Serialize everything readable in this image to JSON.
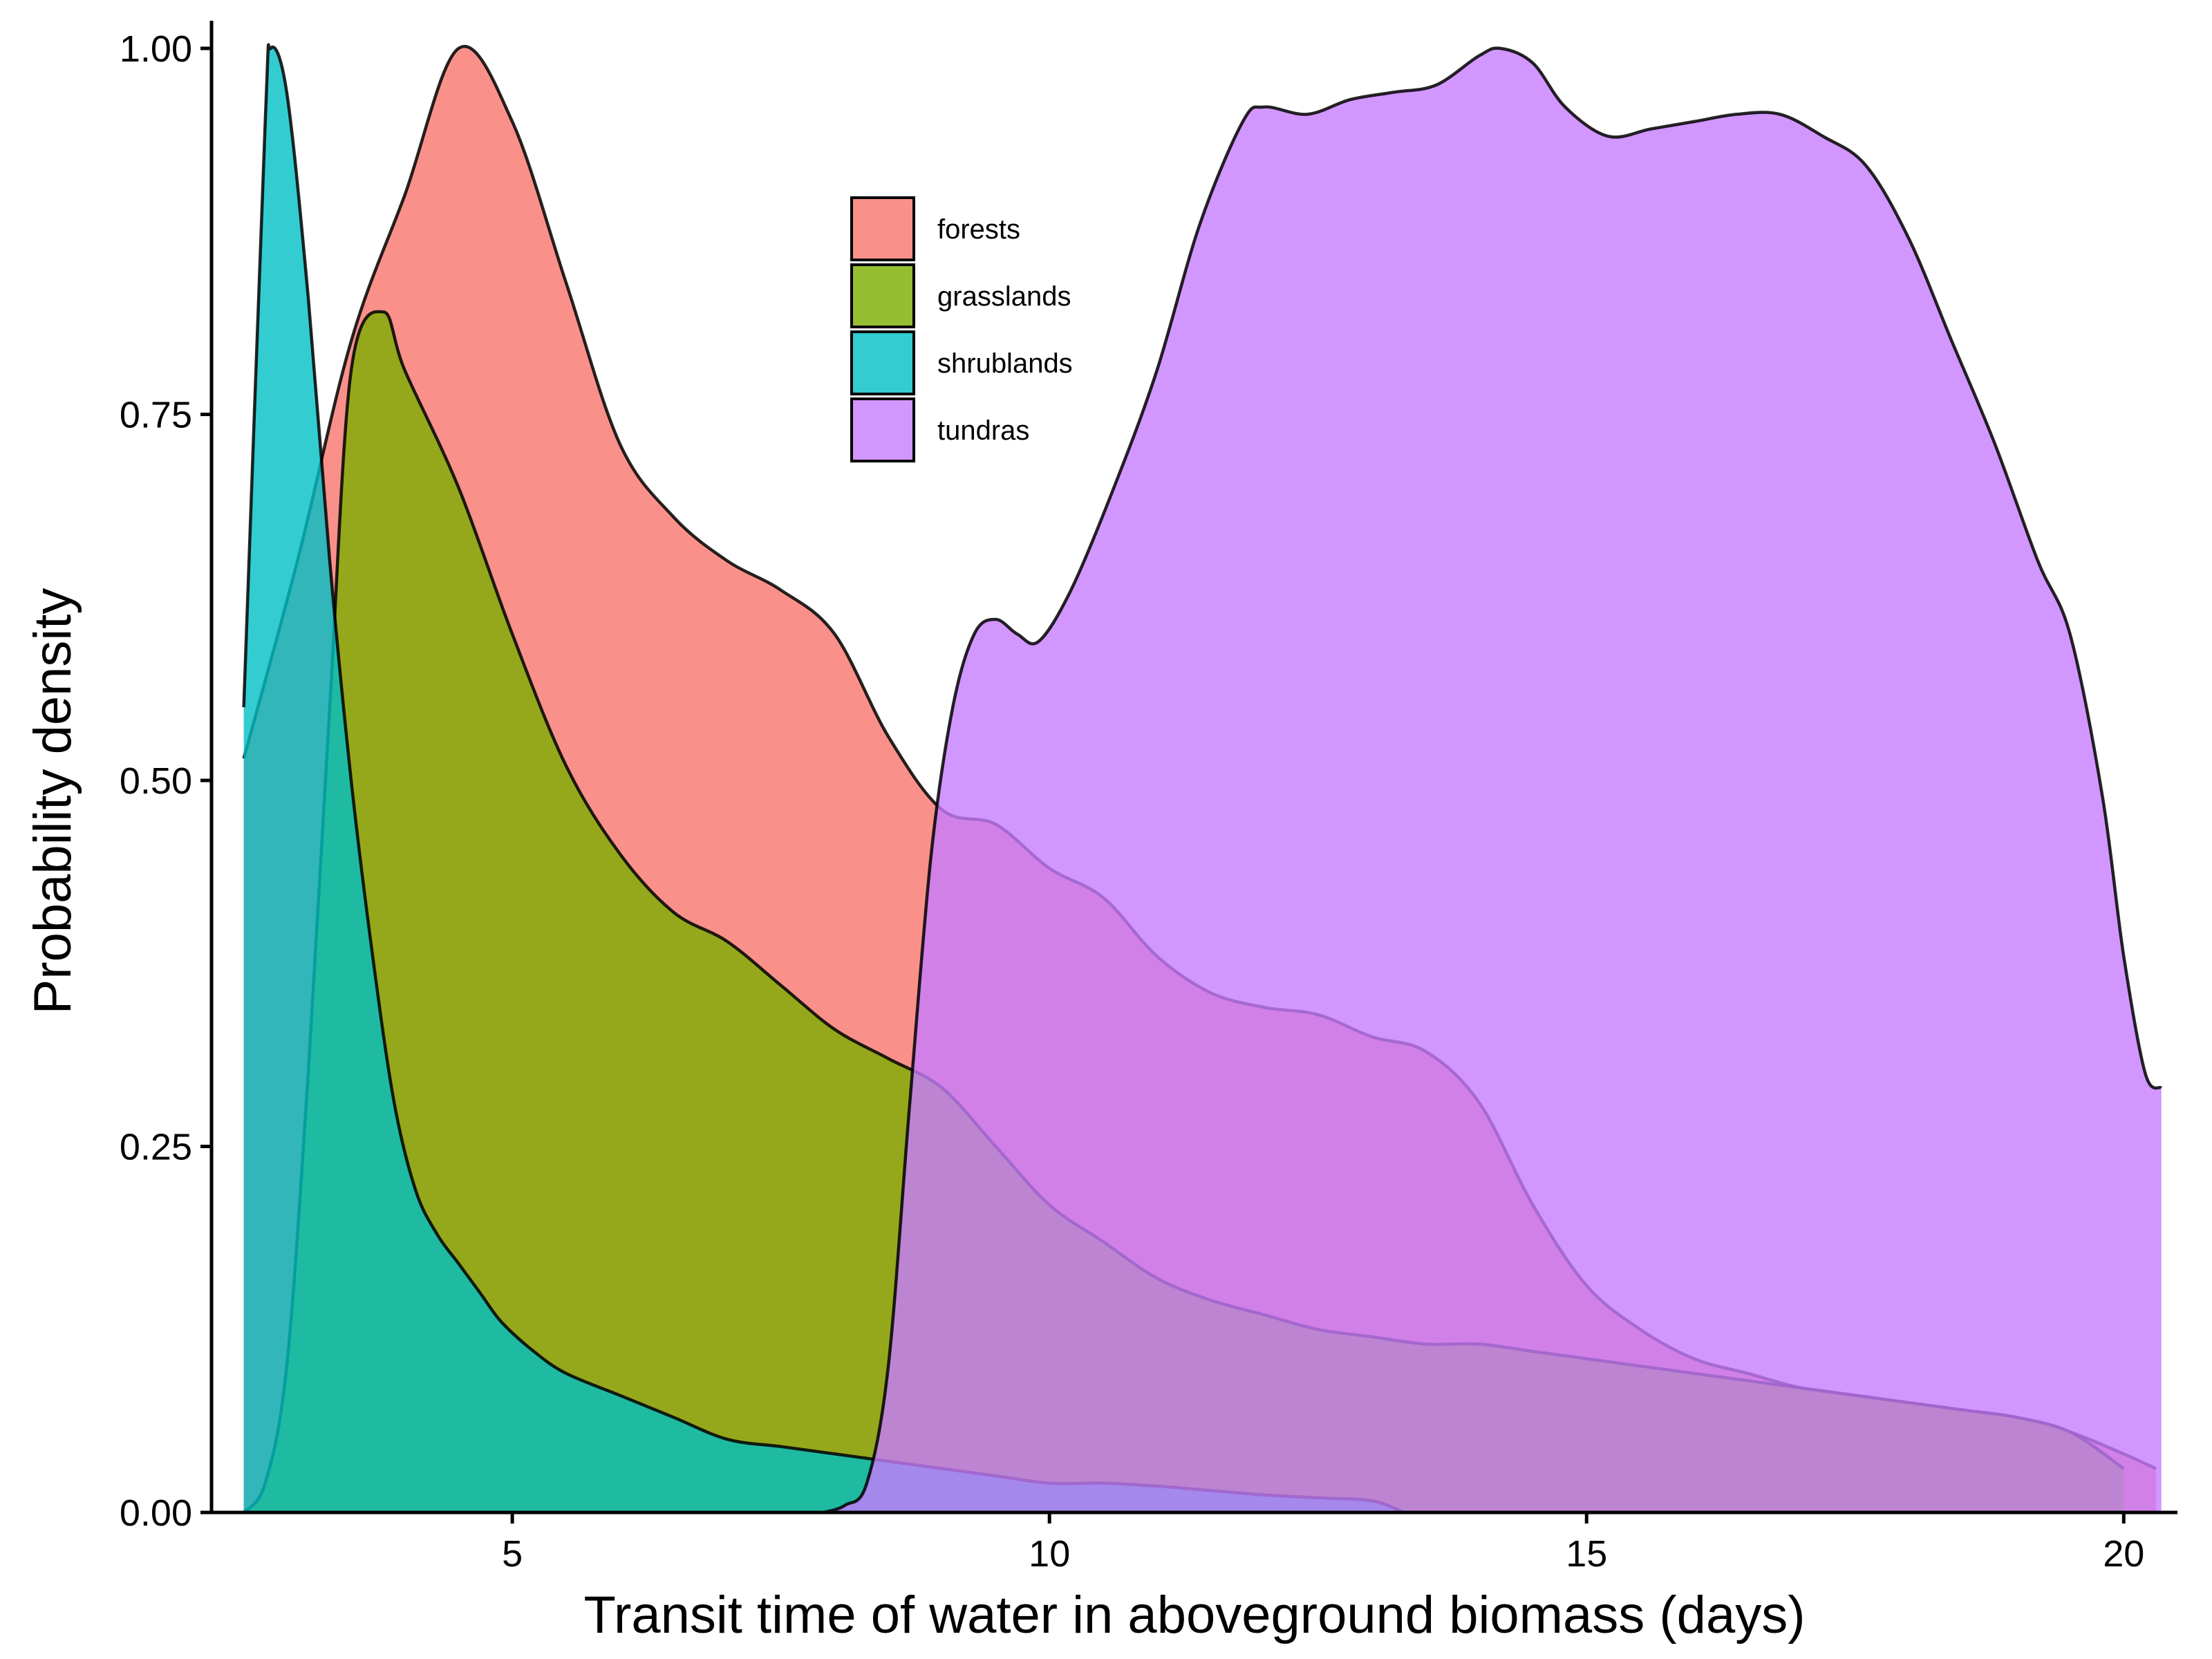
{
  "chart_data": {
    "type": "area",
    "xlabel": "Transit time of water in aboveground biomass (days)",
    "ylabel": "Probability density",
    "xlim": [
      2.2,
      20.5
    ],
    "ylim": [
      0,
      1
    ],
    "xticks": [
      5,
      10,
      15,
      20
    ],
    "yticks": [
      0,
      0.25,
      0.5,
      0.75,
      1.0
    ],
    "ytick_labels": [
      "0.00",
      "0.25",
      "0.50",
      "0.75",
      "1.00"
    ],
    "grid": false,
    "legend_position": "top-center",
    "series": [
      {
        "name": "forests",
        "color": "#F8766D",
        "points": [
          [
            2.5,
            0.515
          ],
          [
            3.0,
            0.65
          ],
          [
            3.5,
            0.8
          ],
          [
            4.0,
            0.9
          ],
          [
            4.5,
            1.0
          ],
          [
            5.0,
            0.95
          ],
          [
            5.5,
            0.84
          ],
          [
            6.0,
            0.73
          ],
          [
            6.5,
            0.68
          ],
          [
            7.0,
            0.65
          ],
          [
            7.5,
            0.63
          ],
          [
            8.0,
            0.6
          ],
          [
            8.5,
            0.53
          ],
          [
            9.0,
            0.48
          ],
          [
            9.5,
            0.47
          ],
          [
            10.0,
            0.44
          ],
          [
            10.5,
            0.42
          ],
          [
            11.0,
            0.38
          ],
          [
            11.5,
            0.355
          ],
          [
            12.0,
            0.345
          ],
          [
            12.5,
            0.34
          ],
          [
            13.0,
            0.325
          ],
          [
            13.5,
            0.315
          ],
          [
            14.0,
            0.28
          ],
          [
            14.5,
            0.21
          ],
          [
            15.0,
            0.155
          ],
          [
            15.5,
            0.125
          ],
          [
            16.0,
            0.105
          ],
          [
            16.5,
            0.095
          ],
          [
            17.0,
            0.085
          ],
          [
            17.5,
            0.08
          ],
          [
            18.0,
            0.075
          ],
          [
            18.5,
            0.07
          ],
          [
            19.0,
            0.065
          ],
          [
            19.5,
            0.055
          ],
          [
            20.0,
            0.04
          ],
          [
            20.3,
            0.03
          ]
        ]
      },
      {
        "name": "grasslands",
        "color": "#7CAE00",
        "points": [
          [
            2.5,
            0.0
          ],
          [
            2.7,
            0.02
          ],
          [
            2.9,
            0.1
          ],
          [
            3.1,
            0.3
          ],
          [
            3.3,
            0.55
          ],
          [
            3.5,
            0.78
          ],
          [
            3.8,
            0.82
          ],
          [
            4.0,
            0.78
          ],
          [
            4.5,
            0.7
          ],
          [
            5.0,
            0.6
          ],
          [
            5.5,
            0.51
          ],
          [
            6.0,
            0.45
          ],
          [
            6.5,
            0.41
          ],
          [
            7.0,
            0.39
          ],
          [
            7.5,
            0.36
          ],
          [
            8.0,
            0.33
          ],
          [
            8.5,
            0.31
          ],
          [
            9.0,
            0.29
          ],
          [
            9.5,
            0.25
          ],
          [
            10.0,
            0.21
          ],
          [
            10.5,
            0.185
          ],
          [
            11.0,
            0.16
          ],
          [
            11.5,
            0.145
          ],
          [
            12.0,
            0.135
          ],
          [
            12.5,
            0.125
          ],
          [
            13.0,
            0.12
          ],
          [
            13.5,
            0.115
          ],
          [
            14.0,
            0.115
          ],
          [
            14.5,
            0.11
          ],
          [
            15.0,
            0.105
          ],
          [
            15.5,
            0.1
          ],
          [
            16.0,
            0.095
          ],
          [
            16.5,
            0.09
          ],
          [
            17.0,
            0.085
          ],
          [
            17.5,
            0.08
          ],
          [
            18.0,
            0.075
          ],
          [
            18.5,
            0.07
          ],
          [
            19.0,
            0.065
          ],
          [
            19.5,
            0.055
          ],
          [
            20.0,
            0.03
          ]
        ]
      },
      {
        "name": "shrublands",
        "color": "#00BFC4",
        "points": [
          [
            2.5,
            0.55
          ],
          [
            2.7,
            0.95
          ],
          [
            2.75,
            1.0
          ],
          [
            2.9,
            0.97
          ],
          [
            3.1,
            0.83
          ],
          [
            3.3,
            0.65
          ],
          [
            3.5,
            0.5
          ],
          [
            3.7,
            0.38
          ],
          [
            3.9,
            0.28
          ],
          [
            4.1,
            0.22
          ],
          [
            4.3,
            0.19
          ],
          [
            4.5,
            0.17
          ],
          [
            4.7,
            0.15
          ],
          [
            4.9,
            0.13
          ],
          [
            5.2,
            0.11
          ],
          [
            5.5,
            0.095
          ],
          [
            6.0,
            0.08
          ],
          [
            6.5,
            0.065
          ],
          [
            7.0,
            0.05
          ],
          [
            7.5,
            0.045
          ],
          [
            8.0,
            0.04
          ],
          [
            8.5,
            0.035
          ],
          [
            9.0,
            0.03
          ],
          [
            9.5,
            0.025
          ],
          [
            10.0,
            0.02
          ],
          [
            10.5,
            0.02
          ],
          [
            11.0,
            0.018
          ],
          [
            11.5,
            0.015
          ],
          [
            12.0,
            0.012
          ],
          [
            12.5,
            0.01
          ],
          [
            13.0,
            0.008
          ],
          [
            13.3,
            0.0
          ]
        ]
      },
      {
        "name": "tundras",
        "color": "#C77CFF",
        "points": [
          [
            7.9,
            0.0
          ],
          [
            8.1,
            0.005
          ],
          [
            8.3,
            0.02
          ],
          [
            8.5,
            0.1
          ],
          [
            8.7,
            0.28
          ],
          [
            8.9,
            0.45
          ],
          [
            9.1,
            0.55
          ],
          [
            9.3,
            0.6
          ],
          [
            9.5,
            0.61
          ],
          [
            9.7,
            0.6
          ],
          [
            9.9,
            0.595
          ],
          [
            10.2,
            0.63
          ],
          [
            10.6,
            0.7
          ],
          [
            11.0,
            0.78
          ],
          [
            11.4,
            0.88
          ],
          [
            11.8,
            0.95
          ],
          [
            12.0,
            0.96
          ],
          [
            12.4,
            0.955
          ],
          [
            12.8,
            0.965
          ],
          [
            13.2,
            0.97
          ],
          [
            13.6,
            0.975
          ],
          [
            14.0,
            0.995
          ],
          [
            14.2,
            1.0
          ],
          [
            14.5,
            0.99
          ],
          [
            14.8,
            0.96
          ],
          [
            15.2,
            0.94
          ],
          [
            15.6,
            0.945
          ],
          [
            16.0,
            0.95
          ],
          [
            16.4,
            0.955
          ],
          [
            16.8,
            0.955
          ],
          [
            17.2,
            0.94
          ],
          [
            17.6,
            0.92
          ],
          [
            18.0,
            0.87
          ],
          [
            18.4,
            0.8
          ],
          [
            18.8,
            0.73
          ],
          [
            19.2,
            0.65
          ],
          [
            19.5,
            0.6
          ],
          [
            19.8,
            0.49
          ],
          [
            20.0,
            0.38
          ],
          [
            20.2,
            0.3
          ],
          [
            20.35,
            0.29
          ]
        ]
      }
    ]
  }
}
